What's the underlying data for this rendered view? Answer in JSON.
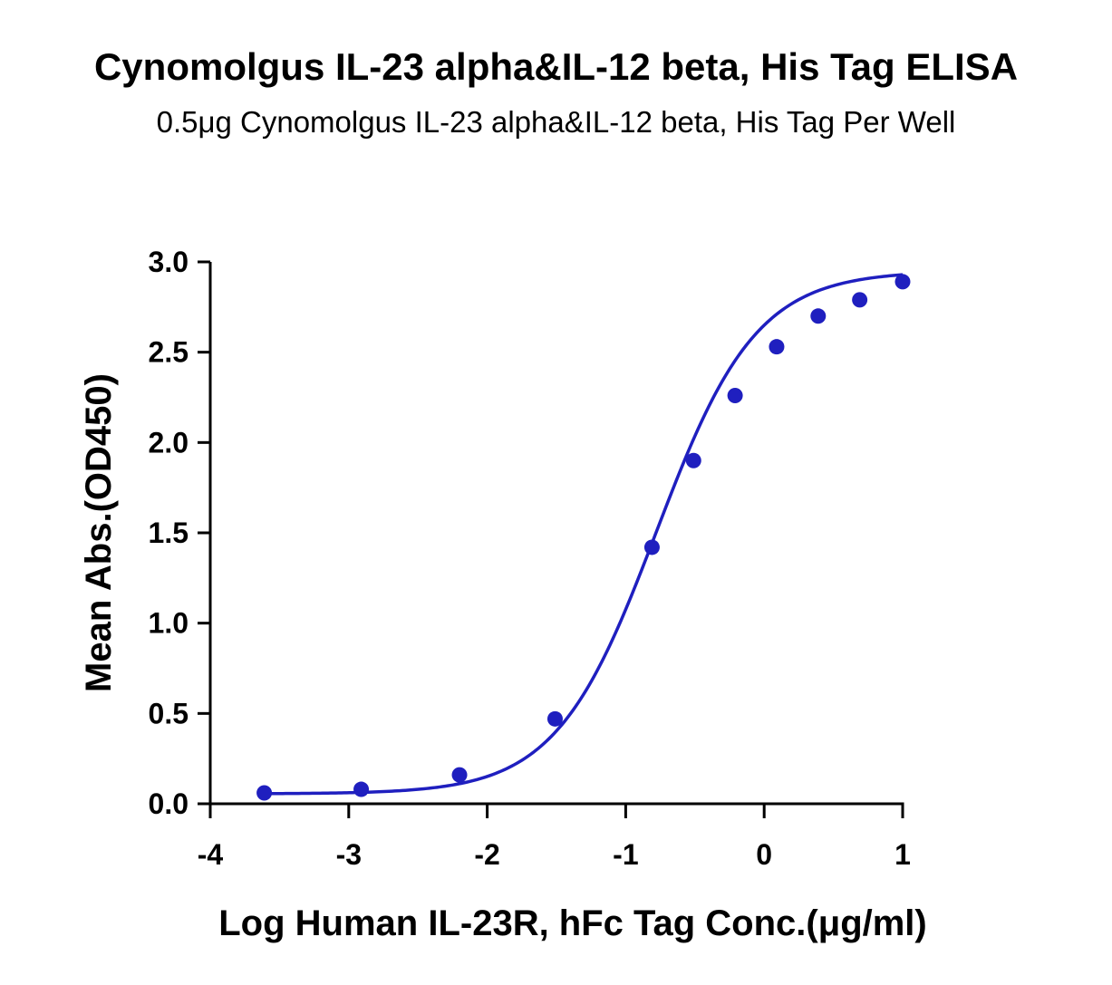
{
  "chart_data": {
    "type": "scatter",
    "title": "Cynomolgus IL-23 alpha&IL-12 beta, His Tag ELISA",
    "subtitle": "0.5μg Cynomolgus IL-23 alpha&IL-12 beta, His Tag Per Well",
    "xlabel": "Log Human IL-23R, hFc Tag Conc.(μg/ml)",
    "ylabel": "Mean Abs.(OD450)",
    "xlim": [
      -4,
      1
    ],
    "ylim": [
      0,
      3
    ],
    "x_ticks": [
      "-4",
      "-3",
      "-2",
      "-1",
      "0",
      "1"
    ],
    "y_ticks": [
      "0.0",
      "0.5",
      "1.0",
      "1.5",
      "2.0",
      "2.5",
      "3.0"
    ],
    "grid": false,
    "series": [
      {
        "x": [
          -3.61,
          -2.91,
          -2.2,
          -1.51,
          -0.81,
          -0.51,
          -0.21,
          0.09,
          0.39,
          0.69,
          1.0
        ],
        "y": [
          0.06,
          0.08,
          0.16,
          0.47,
          1.42,
          1.9,
          2.26,
          2.53,
          2.7,
          2.79,
          2.89
        ],
        "fit_curve": "4PL sigmoid"
      }
    ],
    "colors": {
      "series": "#1f1fbf",
      "axis": "#000000"
    }
  }
}
